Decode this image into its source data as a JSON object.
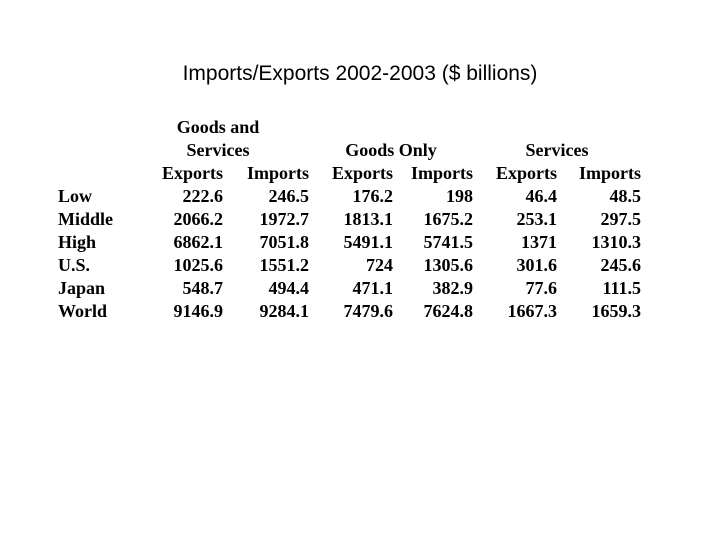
{
  "title": "Imports/Exports 2002-2003 ($ billions)",
  "table": {
    "group_headers": [
      {
        "line1": "Goods and",
        "line2": "Services"
      },
      {
        "line1": "",
        "line2": "Goods Only"
      },
      {
        "line1": "",
        "line2": "Services"
      }
    ],
    "sub_headers": [
      "Exports",
      "Imports",
      "Exports",
      "Imports",
      "Exports",
      "Imports"
    ],
    "rows": [
      {
        "label": "Low",
        "values": [
          "222.6",
          "246.5",
          "176.2",
          "198",
          "46.4",
          "48.5"
        ]
      },
      {
        "label": "Middle",
        "values": [
          "2066.2",
          "1972.7",
          "1813.1",
          "1675.2",
          "253.1",
          "297.5"
        ]
      },
      {
        "label": "High",
        "values": [
          "6862.1",
          "7051.8",
          "5491.1",
          "5741.5",
          "1371",
          "1310.3"
        ]
      },
      {
        "label": "U.S.",
        "values": [
          "1025.6",
          "1551.2",
          "724",
          "1305.6",
          "301.6",
          "245.6"
        ]
      },
      {
        "label": "Japan",
        "values": [
          "548.7",
          "494.4",
          "471.1",
          "382.9",
          "77.6",
          "111.5"
        ]
      },
      {
        "label": "World",
        "values": [
          "9146.9",
          "9284.1",
          "7479.6",
          "7624.8",
          "1667.3",
          "1659.3"
        ]
      }
    ]
  }
}
